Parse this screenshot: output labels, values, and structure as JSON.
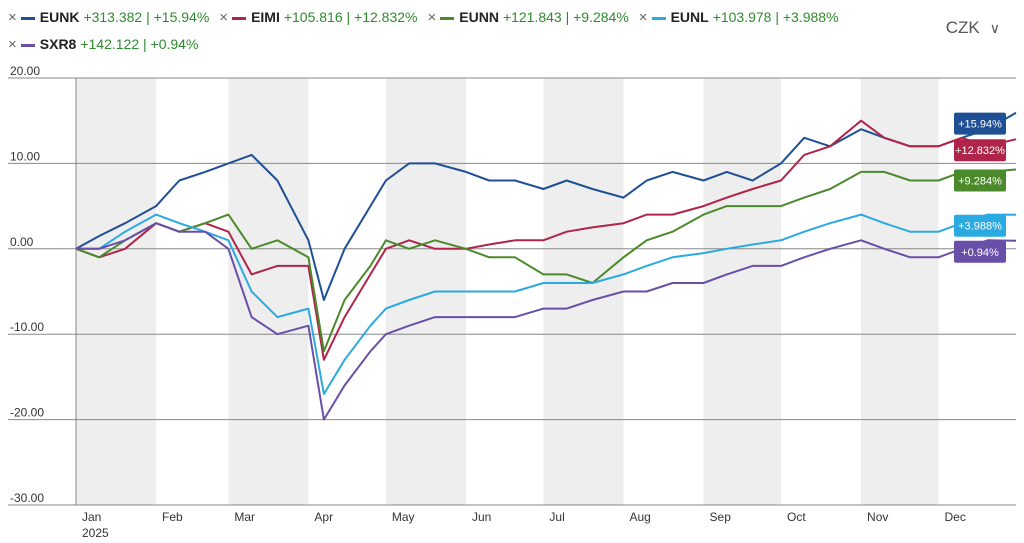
{
  "currency": {
    "label": "CZK"
  },
  "legend": [
    {
      "ticker": "EUNK",
      "price": "+313.382",
      "change": "+15.94%",
      "color": "#1f4f95"
    },
    {
      "ticker": "EIMI",
      "price": "+105.816",
      "change": "+12.832%",
      "color": "#b0244a"
    },
    {
      "ticker": "EUNN",
      "price": "+121.843",
      "change": "+9.284%",
      "color": "#4a8a2a"
    },
    {
      "ticker": "EUNL",
      "price": "+103.978",
      "change": "+3.988%",
      "color": "#2aaae0"
    },
    {
      "ticker": "SXR8",
      "price": "+142.122",
      "change": "+0.94%",
      "color": "#6a4fa8"
    }
  ],
  "chart_data": {
    "type": "line",
    "ylim": [
      -30,
      20
    ],
    "y_ticks": [
      "20.00",
      "10.00",
      "0.00",
      "-10.00",
      "-20.00",
      "-30.00"
    ],
    "x_ticks": [
      "Jan",
      "Feb",
      "Mar",
      "Apr",
      "May",
      "Jun",
      "Jul",
      "Aug",
      "Sep",
      "Oct",
      "Nov",
      "Dec"
    ],
    "x_year": "2025",
    "grid": true,
    "x": [
      "2025-01-01",
      "2025-01-10",
      "2025-01-20",
      "2025-02-01",
      "2025-02-10",
      "2025-02-20",
      "2025-03-01",
      "2025-03-10",
      "2025-03-20",
      "2025-04-01",
      "2025-04-07",
      "2025-04-15",
      "2025-04-25",
      "2025-05-01",
      "2025-05-10",
      "2025-05-20",
      "2025-06-01",
      "2025-06-10",
      "2025-06-20",
      "2025-07-01",
      "2025-07-10",
      "2025-07-20",
      "2025-08-01",
      "2025-08-10",
      "2025-08-20",
      "2025-09-01",
      "2025-09-10",
      "2025-09-20",
      "2025-10-01",
      "2025-10-10",
      "2025-10-20",
      "2025-11-01",
      "2025-11-10",
      "2025-11-20",
      "2025-12-01",
      "2025-12-10",
      "2025-12-20",
      "2025-12-31"
    ],
    "series": [
      {
        "name": "EUNK",
        "color": "#1f4f95",
        "end_label": "+15.94%",
        "values": [
          0,
          1.5,
          3,
          5,
          8,
          9,
          10,
          11,
          8,
          1,
          -6,
          0,
          5,
          8,
          10,
          10,
          9,
          8,
          8,
          7,
          8,
          7,
          6,
          8,
          9,
          8,
          9,
          8,
          10,
          13,
          12,
          14,
          13,
          12,
          12,
          13,
          14,
          15.94
        ]
      },
      {
        "name": "EIMI",
        "color": "#b0244a",
        "end_label": "+12.832%",
        "values": [
          0,
          -1,
          0,
          3,
          2,
          3,
          2,
          -3,
          -2,
          -2,
          -13,
          -8,
          -3,
          0,
          1,
          0,
          0,
          0.5,
          1,
          1,
          2,
          2.5,
          3,
          4,
          4,
          5,
          6,
          7,
          8,
          11,
          12,
          15,
          13,
          12,
          12,
          13,
          12,
          12.832
        ]
      },
      {
        "name": "EUNN",
        "color": "#4a8a2a",
        "end_label": "+9.284%",
        "values": [
          0,
          -1,
          1,
          3,
          2,
          3,
          4,
          0,
          1,
          -1,
          -12,
          -6,
          -2,
          1,
          0,
          1,
          0,
          -1,
          -1,
          -3,
          -3,
          -4,
          -1,
          1,
          2,
          4,
          5,
          5,
          5,
          6,
          7,
          9,
          9,
          8,
          8,
          9,
          9,
          9.284
        ]
      },
      {
        "name": "EUNL",
        "color": "#2aaae0",
        "end_label": "+3.988%",
        "values": [
          0,
          0,
          2,
          4,
          3,
          2,
          1,
          -5,
          -8,
          -7,
          -17,
          -13,
          -9,
          -7,
          -6,
          -5,
          -5,
          -5,
          -5,
          -4,
          -4,
          -4,
          -3,
          -2,
          -1,
          -0.5,
          0,
          0.5,
          1,
          2,
          3,
          4,
          3,
          2,
          2,
          3,
          4,
          3.988
        ]
      },
      {
        "name": "SXR8",
        "color": "#6a4fa8",
        "end_label": "+0.94%",
        "values": [
          0,
          0,
          1,
          3,
          2,
          2,
          0,
          -8,
          -10,
          -9,
          -20,
          -16,
          -12,
          -10,
          -9,
          -8,
          -8,
          -8,
          -8,
          -7,
          -7,
          -6,
          -5,
          -5,
          -4,
          -4,
          -3,
          -2,
          -2,
          -1,
          0,
          1,
          0,
          -1,
          -1,
          0,
          1,
          0.94
        ]
      }
    ]
  }
}
